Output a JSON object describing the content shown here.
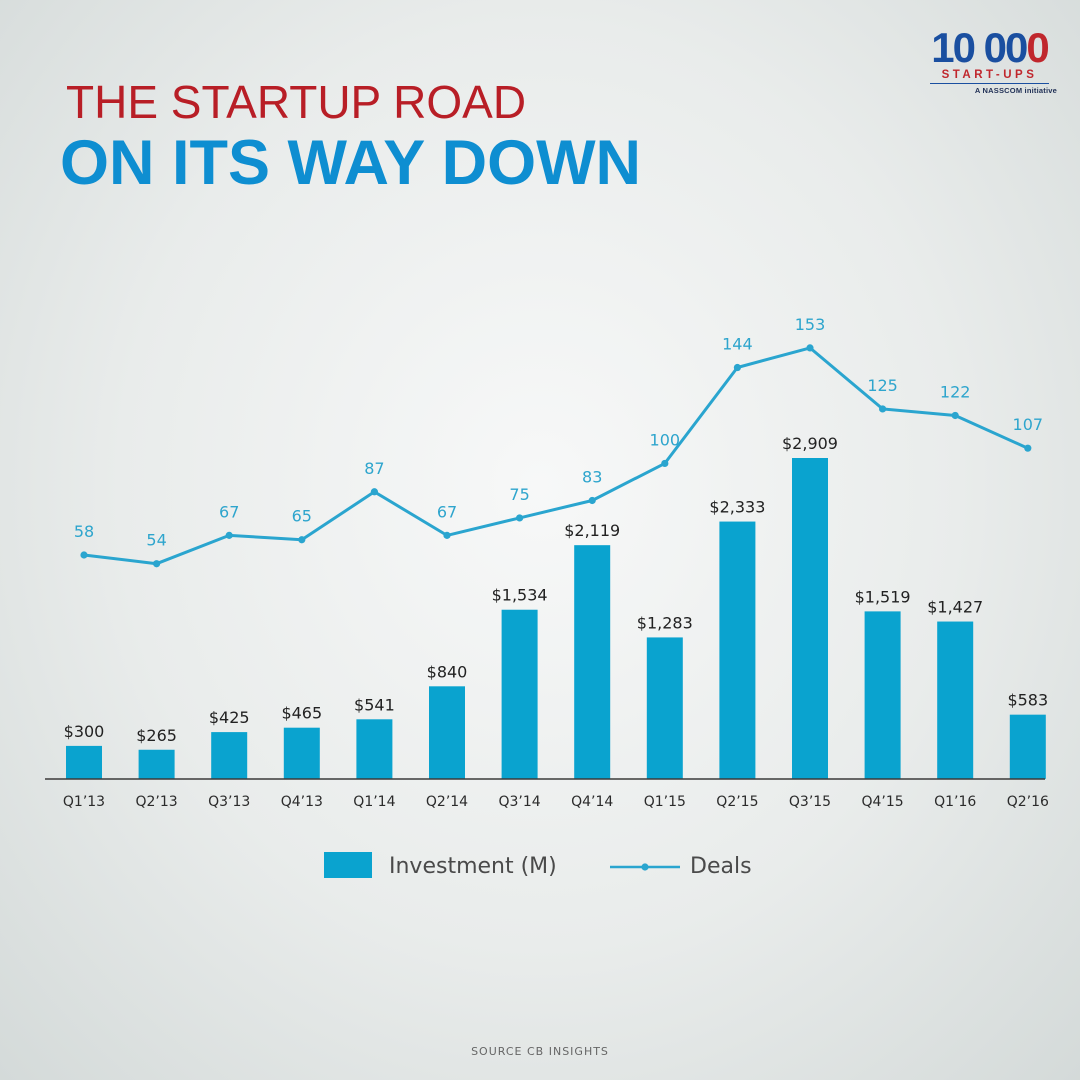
{
  "logo": {
    "number_main": "10 00",
    "number_accent": "0",
    "word": "START-UPS",
    "tagline": "A NASSCOM initiative"
  },
  "title": {
    "line1": "THE STARTUP ROAD",
    "line2": "ON ITS WAY DOWN"
  },
  "colors": {
    "bar": "#0aa3cf",
    "line": "#2aa5cf",
    "title_red": "#b81e26",
    "title_blue": "#0e8ed1"
  },
  "chart_data": {
    "type": "bar",
    "title": "THE STARTUP ROAD ON ITS WAY DOWN",
    "categories": [
      "Q1’13",
      "Q2’13",
      "Q3’13",
      "Q4’13",
      "Q1’14",
      "Q2’14",
      "Q3’14",
      "Q4’14",
      "Q1’15",
      "Q2’15",
      "Q3’15",
      "Q4’15",
      "Q1’16",
      "Q2’16"
    ],
    "series": [
      {
        "name": "Investment (M)",
        "type": "bar",
        "values": [
          300,
          265,
          425,
          465,
          541,
          840,
          1534,
          2119,
          1283,
          2333,
          2909,
          1519,
          1427,
          583
        ],
        "labels": [
          "$300",
          "$265",
          "$425",
          "$465",
          "$541",
          "$840",
          "$1,534",
          "$2,119",
          "$1,283",
          "$2,333",
          "$2,909",
          "$1,519",
          "$1,427",
          "$583"
        ]
      },
      {
        "name": "Deals",
        "type": "line",
        "values": [
          58,
          54,
          67,
          65,
          87,
          67,
          75,
          83,
          100,
          144,
          153,
          125,
          122,
          107
        ],
        "labels": [
          "58",
          "54",
          "67",
          "65",
          "87",
          "67",
          "75",
          "83",
          "100",
          "144",
          "153",
          "125",
          "122",
          "107"
        ]
      }
    ],
    "legend": [
      "Investment (M)",
      "Deals"
    ],
    "xlabel": "",
    "ylabel": "",
    "grid": false
  },
  "source": "SOURCE CB INSIGHTS"
}
